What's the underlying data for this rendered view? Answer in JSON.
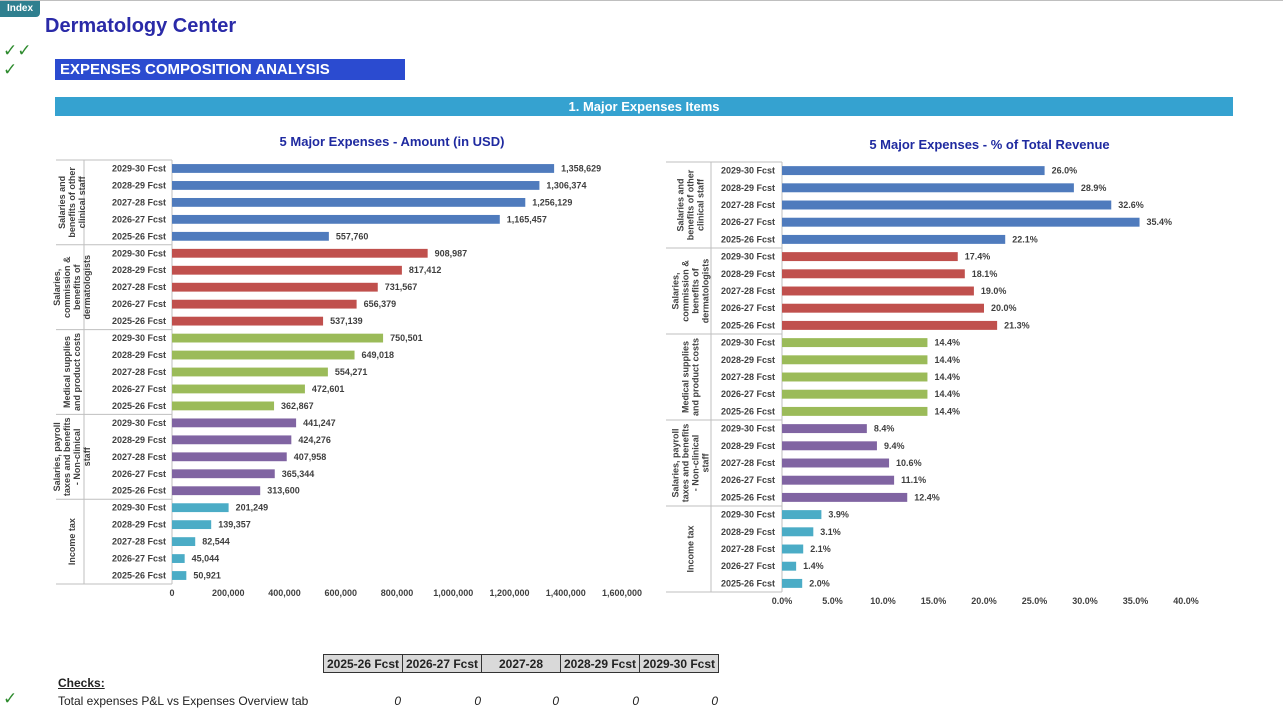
{
  "index_button": "Index",
  "company_name": "Dermatology Center",
  "section_title": "EXPENSES COMPOSITION ANALYSIS",
  "band_title": "1. Major Expenses Items",
  "checks": {
    "heading": "Checks:",
    "columns": [
      "2025-26 Fcst",
      "2026-27 Fcst",
      "2027-28",
      "2028-29 Fcst",
      "2029-30 Fcst"
    ],
    "row_label": "Total expenses P&L vs Expenses Overview tab",
    "values": [
      "0",
      "0",
      "0",
      "0",
      "0"
    ]
  },
  "chart_data": [
    {
      "type": "bar",
      "orientation": "horizontal",
      "title": "5 Major Expenses - Amount (in USD)",
      "xlim": [
        0,
        1600000
      ],
      "xticks": [
        0,
        200000,
        400000,
        600000,
        800000,
        1000000,
        1200000,
        1400000,
        1600000
      ],
      "xtick_labels": [
        "0",
        "200,000",
        "400,000",
        "600,000",
        "800,000",
        "1,000,000",
        "1,200,000",
        "1,400,000",
        "1,600,000"
      ],
      "categories": [
        "2029-30 Fcst",
        "2028-29 Fcst",
        "2027-28 Fcst",
        "2026-27 Fcst",
        "2025-26 Fcst"
      ],
      "groups": [
        {
          "name": "Salaries and benefits of other clinical staff",
          "color": "#4f7bbd",
          "values": [
            1358629,
            1306374,
            1256129,
            1165457,
            557760
          ],
          "labels": [
            "1,358,629",
            "1,306,374",
            "1,256,129",
            "1,165,457",
            "557,760"
          ]
        },
        {
          "name": "Salaries, commission & benefits of dermatologists",
          "color": "#c0504d",
          "values": [
            908987,
            817412,
            731567,
            656379,
            537139
          ],
          "labels": [
            "908,987",
            "817,412",
            "731,567",
            "656,379",
            "537,139"
          ]
        },
        {
          "name": "Medical supplies and product costs",
          "color": "#9bbb59",
          "values": [
            750501,
            649018,
            554271,
            472601,
            362867
          ],
          "labels": [
            "750,501",
            "649,018",
            "554,271",
            "472,601",
            "362,867"
          ]
        },
        {
          "name": "Salaries, payroll taxes and benefits - Non-clinical staff",
          "color": "#8064a2",
          "values": [
            441247,
            424276,
            407958,
            365344,
            313600
          ],
          "labels": [
            "441,247",
            "424,276",
            "407,958",
            "365,344",
            "313,600"
          ]
        },
        {
          "name": "Income tax",
          "color": "#4bacc6",
          "values": [
            201249,
            139357,
            82544,
            45044,
            50921
          ],
          "labels": [
            "201,249",
            "139,357",
            "82,544",
            "45,044",
            "50,921"
          ]
        }
      ],
      "grid": false
    },
    {
      "type": "bar",
      "orientation": "horizontal",
      "title": "5 Major Expenses - % of Total Revenue",
      "xlim": [
        0,
        40
      ],
      "xticks": [
        0,
        5,
        10,
        15,
        20,
        25,
        30,
        35,
        40
      ],
      "xtick_labels": [
        "0.0%",
        "5.0%",
        "10.0%",
        "15.0%",
        "20.0%",
        "25.0%",
        "30.0%",
        "35.0%",
        "40.0%"
      ],
      "categories": [
        "2029-30 Fcst",
        "2028-29 Fcst",
        "2027-28 Fcst",
        "2026-27 Fcst",
        "2025-26 Fcst"
      ],
      "groups": [
        {
          "name": "Salaries and benefits of other clinical staff",
          "color": "#4f7bbd",
          "values": [
            26.0,
            28.9,
            32.6,
            35.4,
            22.1
          ],
          "labels": [
            "26.0%",
            "28.9%",
            "32.6%",
            "35.4%",
            "22.1%"
          ]
        },
        {
          "name": "Salaries, commission & benefits of dermatologists",
          "color": "#c0504d",
          "values": [
            17.4,
            18.1,
            19.0,
            20.0,
            21.3
          ],
          "labels": [
            "17.4%",
            "18.1%",
            "19.0%",
            "20.0%",
            "21.3%"
          ]
        },
        {
          "name": "Medical supplies and product costs",
          "color": "#9bbb59",
          "values": [
            14.4,
            14.4,
            14.4,
            14.4,
            14.4
          ],
          "labels": [
            "14.4%",
            "14.4%",
            "14.4%",
            "14.4%",
            "14.4%"
          ]
        },
        {
          "name": "Salaries, payroll taxes and benefits - Non-clinical staff",
          "color": "#8064a2",
          "values": [
            8.4,
            9.4,
            10.6,
            11.1,
            12.4
          ],
          "labels": [
            "8.4%",
            "9.4%",
            "10.6%",
            "11.1%",
            "12.4%"
          ]
        },
        {
          "name": "Income tax",
          "color": "#4bacc6",
          "values": [
            3.9,
            3.1,
            2.1,
            1.4,
            2.0
          ],
          "labels": [
            "3.9%",
            "3.1%",
            "2.1%",
            "1.4%",
            "2.0%"
          ]
        }
      ],
      "grid": false
    }
  ]
}
